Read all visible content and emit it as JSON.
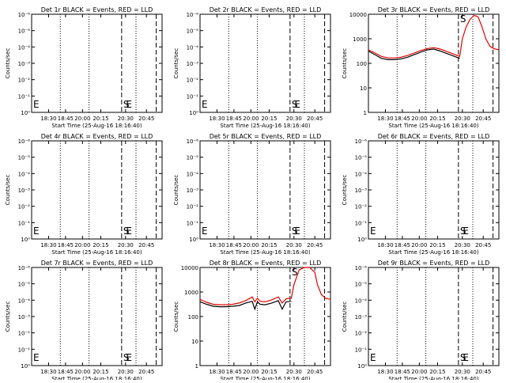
{
  "colors": {
    "events": "#000000",
    "lld": "#e00000",
    "axis": "#000000"
  },
  "xlabel": "Start Time (25-Aug-16 18:16:40)",
  "ylabel": "Counts/sec",
  "x_tick_labels": [
    "18:30",
    "18:45",
    "20:00",
    "20:15",
    "20:30",
    "20:45"
  ],
  "markers": {
    "start": "S",
    "end": "E"
  },
  "chart_data": [
    {
      "type": "line",
      "title": "Det 1r BLACK = Events, RED = LLD",
      "scale": "log",
      "yticks": [
        "10⁰",
        "10⁻¹",
        "10⁻²",
        "10⁻³",
        "10⁻⁴",
        "10⁻⁵",
        "10⁻⁶"
      ],
      "ylim": [
        0,
        6
      ],
      "marker_label": "S",
      "end_label": "E",
      "left_label": "E",
      "series": []
    },
    {
      "type": "line",
      "title": "Det 2r BLACK = Events, RED = LLD",
      "scale": "log",
      "yticks": [
        "10⁰",
        "10⁻¹",
        "10⁻²",
        "10⁻³",
        "10⁻⁴",
        "10⁻⁵",
        "10⁻⁶"
      ],
      "ylim": [
        0,
        6
      ],
      "marker_label": "S",
      "end_label": "E",
      "left_label": "E",
      "series": []
    },
    {
      "type": "line",
      "title": "Det 3r BLACK = Events, RED = LLD",
      "scale": "log",
      "yticks": [
        "1",
        "10",
        "100",
        "1000",
        "10000"
      ],
      "ylim": [
        0,
        4
      ],
      "marker_label": "S",
      "end_label": "E",
      "left_label": "",
      "series": [
        {
          "color": "events",
          "x": [
            0,
            0.05,
            0.1,
            0.15,
            0.2,
            0.25,
            0.3,
            0.35,
            0.4,
            0.45,
            0.5,
            0.55,
            0.6,
            0.65,
            0.7
          ],
          "y": [
            2.5,
            2.35,
            2.2,
            2.15,
            2.15,
            2.18,
            2.25,
            2.35,
            2.45,
            2.55,
            2.58,
            2.5,
            2.4,
            2.3,
            2.2
          ]
        },
        {
          "color": "lld",
          "x": [
            0,
            0.05,
            0.1,
            0.15,
            0.2,
            0.25,
            0.3,
            0.35,
            0.4,
            0.45,
            0.5,
            0.55,
            0.6,
            0.65,
            0.7,
            0.72,
            0.75,
            0.78,
            0.81,
            0.84,
            0.87,
            0.9,
            0.93,
            0.96,
            1.0
          ],
          "y": [
            2.55,
            2.42,
            2.28,
            2.22,
            2.22,
            2.25,
            2.32,
            2.42,
            2.52,
            2.6,
            2.64,
            2.58,
            2.48,
            2.38,
            2.28,
            3.0,
            3.5,
            3.8,
            3.95,
            3.9,
            3.5,
            3.0,
            2.7,
            2.6,
            2.55
          ]
        }
      ]
    },
    {
      "type": "line",
      "title": "Det 4r BLACK = Events, RED = LLD",
      "scale": "log",
      "yticks": [
        "10⁰",
        "10⁻¹",
        "10⁻²",
        "10⁻³",
        "10⁻⁴",
        "10⁻⁵",
        "10⁻⁶"
      ],
      "ylim": [
        0,
        6
      ],
      "marker_label": "S",
      "end_label": "E",
      "left_label": "E",
      "series": []
    },
    {
      "type": "line",
      "title": "Det 5r BLACK = Events, RED = LLD",
      "scale": "log",
      "yticks": [
        "10⁰",
        "10⁻¹",
        "10⁻²",
        "10⁻³",
        "10⁻⁴",
        "10⁻⁵",
        "10⁻⁶"
      ],
      "ylim": [
        0,
        6
      ],
      "marker_label": "S",
      "end_label": "E",
      "left_label": "E",
      "series": []
    },
    {
      "type": "line",
      "title": "Det 6r BLACK = Events, RED = LLD",
      "scale": "log",
      "yticks": [
        "10⁰",
        "10⁻¹",
        "10⁻²",
        "10⁻³",
        "10⁻⁴",
        "10⁻⁵",
        "10⁻⁶"
      ],
      "ylim": [
        0,
        6
      ],
      "marker_label": "S",
      "end_label": "E",
      "left_label": "E",
      "series": []
    },
    {
      "type": "line",
      "title": "Det 7r BLACK = Events, RED = LLD",
      "scale": "log",
      "yticks": [
        "10⁰",
        "10⁻¹",
        "10⁻²",
        "10⁻³",
        "10⁻⁴",
        "10⁻⁵",
        "10⁻⁶"
      ],
      "ylim": [
        0,
        6
      ],
      "marker_label": "S",
      "end_label": "E",
      "left_label": "E",
      "series": []
    },
    {
      "type": "line",
      "title": "Det 8r BLACK = Events, RED = LLD",
      "scale": "log",
      "yticks": [
        "1",
        "10",
        "100",
        "1000",
        "10000"
      ],
      "ylim": [
        0,
        4
      ],
      "marker_label": "S",
      "end_label": "E",
      "left_label": "",
      "series": [
        {
          "color": "events",
          "x": [
            0,
            0.05,
            0.1,
            0.15,
            0.2,
            0.25,
            0.3,
            0.35,
            0.4,
            0.42,
            0.44,
            0.46,
            0.5,
            0.55,
            0.6,
            0.63,
            0.66,
            0.7
          ],
          "y": [
            2.6,
            2.5,
            2.42,
            2.4,
            2.4,
            2.42,
            2.45,
            2.55,
            2.62,
            2.3,
            2.6,
            2.5,
            2.48,
            2.55,
            2.65,
            2.3,
            2.6,
            2.62
          ]
        },
        {
          "color": "lld",
          "x": [
            0,
            0.05,
            0.1,
            0.15,
            0.2,
            0.25,
            0.3,
            0.35,
            0.4,
            0.42,
            0.44,
            0.46,
            0.5,
            0.55,
            0.6,
            0.63,
            0.66,
            0.7,
            0.72,
            0.76,
            0.8,
            0.84,
            0.88,
            0.9,
            0.93,
            0.96,
            1.0
          ],
          "y": [
            2.7,
            2.58,
            2.5,
            2.48,
            2.48,
            2.5,
            2.55,
            2.65,
            2.8,
            2.6,
            2.75,
            2.62,
            2.6,
            2.68,
            2.8,
            2.55,
            2.72,
            2.75,
            3.3,
            3.9,
            4.0,
            4.0,
            3.8,
            3.3,
            2.9,
            2.75,
            2.7
          ]
        }
      ]
    },
    {
      "type": "line",
      "title": "Det 9r BLACK = Events, RED = LLD",
      "scale": "log",
      "yticks": [
        "10⁰",
        "10⁻¹",
        "10⁻²",
        "10⁻³",
        "10⁻⁴",
        "10⁻⁵",
        "10⁻⁶"
      ],
      "ylim": [
        0,
        6
      ],
      "marker_label": "S",
      "end_label": "E",
      "left_label": "E",
      "series": []
    }
  ]
}
